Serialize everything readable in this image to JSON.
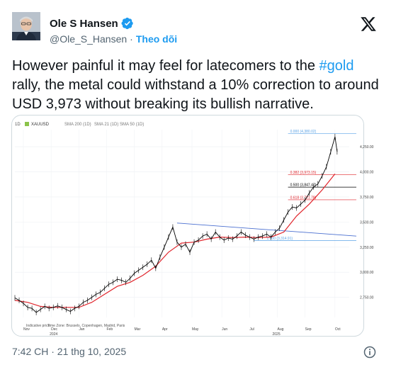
{
  "author": {
    "display_name": "Ole S Hansen",
    "handle": "@Ole_S_Hansen",
    "separator": "·",
    "follow_label": "Theo dõi",
    "avatar_icon": "person-avatar-icon",
    "verified_icon": "verified-badge-icon"
  },
  "tweet": {
    "text_before": "However painful it may feel for latecomers to the ",
    "hashtag": "#gold",
    "text_after": " rally, the metal could withstand a 10% correction to around USD 3,973 without breaking its bullish narrative.",
    "timestamp": "7:42 CH · 21 thg 10, 2025"
  },
  "colors": {
    "accent": "#1d9bf0",
    "price": "#000000",
    "sma21": "#e0242b",
    "trendline": "#4a6fd0",
    "fib_red": "#e0242b",
    "fib_black": "#000000",
    "fib_blue": "#5ba3e6"
  },
  "chart_data": {
    "type": "line",
    "toolbar": {
      "timeframe": "1D",
      "symbol": "XAUUSD",
      "sma200": "SMA 200 (1D)",
      "sma21": "SMA 21 (1D)",
      "sma50": "SMA 50 (1D)"
    },
    "footer": {
      "indicative": "Indicative price",
      "timezone": "Time Zone: Brussels, Copenhagen, Madrid, Paris"
    },
    "x_labels": [
      "Nov",
      "Dec",
      "Jan",
      "Feb",
      "Mar",
      "Apr",
      "May",
      "Jun",
      "Jul",
      "Aug",
      "Sep",
      "Oct"
    ],
    "years": [
      "2024",
      "2025"
    ],
    "ylim": [
      2550,
      4420
    ],
    "y_ticks": [
      {
        "v": 2750,
        "label": "2,750.00"
      },
      {
        "v": 3000,
        "label": "3,000.00"
      },
      {
        "v": 3250,
        "label": "3,250.00"
      },
      {
        "v": 3500,
        "label": "3,500.00"
      },
      {
        "v": 3750,
        "label": "3,750.00"
      },
      {
        "v": 4000,
        "label": "4,000.00"
      },
      {
        "v": 4250,
        "label": "4,250.00"
      }
    ],
    "fib_levels": [
      {
        "ratio": "0.000",
        "value": 4380.02,
        "label": "0.000 (4,380.02)",
        "color": "#5ba3e6"
      },
      {
        "ratio": "0.382",
        "value": 3973.15,
        "label": "0.382 (3,973.15)",
        "color": "#e0242b"
      },
      {
        "ratio": "0.500",
        "value": 3847.47,
        "label": "0.500 (3,847.47)",
        "color": "#000000"
      },
      {
        "ratio": "0.618",
        "value": 3721.78,
        "label": "0.618 (3,721.78)",
        "color": "#e0242b"
      },
      {
        "ratio": "1.000",
        "value": 3314.91,
        "label": "1.000 (3,314.91)",
        "color": "#5ba3e6"
      }
    ],
    "price_series": {
      "name": "XAUUSD",
      "points": [
        [
          0,
          2745
        ],
        [
          2,
          2720
        ],
        [
          4,
          2690
        ],
        [
          6,
          2650
        ],
        [
          8,
          2640
        ],
        [
          10,
          2600
        ],
        [
          12,
          2630
        ],
        [
          14,
          2660
        ],
        [
          16,
          2640
        ],
        [
          18,
          2650
        ],
        [
          20,
          2665
        ],
        [
          22,
          2650
        ],
        [
          24,
          2630
        ],
        [
          26,
          2610
        ],
        [
          28,
          2640
        ],
        [
          30,
          2660
        ],
        [
          32,
          2700
        ],
        [
          34,
          2720
        ],
        [
          36,
          2750
        ],
        [
          38,
          2780
        ],
        [
          40,
          2800
        ],
        [
          42,
          2840
        ],
        [
          44,
          2880
        ],
        [
          46,
          2900
        ],
        [
          48,
          2930
        ],
        [
          50,
          2920
        ],
        [
          52,
          2900
        ],
        [
          54,
          2940
        ],
        [
          56,
          2990
        ],
        [
          58,
          3020
        ],
        [
          60,
          3050
        ],
        [
          62,
          3080
        ],
        [
          64,
          3120
        ],
        [
          66,
          3040
        ],
        [
          68,
          3150
        ],
        [
          70,
          3250
        ],
        [
          72,
          3350
        ],
        [
          74,
          3450
        ],
        [
          76,
          3300
        ],
        [
          78,
          3250
        ],
        [
          80,
          3280
        ],
        [
          82,
          3200
        ],
        [
          84,
          3300
        ],
        [
          86,
          3320
        ],
        [
          88,
          3360
        ],
        [
          90,
          3380
        ],
        [
          92,
          3330
        ],
        [
          94,
          3400
        ],
        [
          96,
          3350
        ],
        [
          98,
          3320
        ],
        [
          100,
          3340
        ],
        [
          102,
          3330
        ],
        [
          104,
          3360
        ],
        [
          106,
          3400
        ],
        [
          108,
          3370
        ],
        [
          110,
          3350
        ],
        [
          112,
          3330
        ],
        [
          114,
          3350
        ],
        [
          116,
          3360
        ],
        [
          118,
          3380
        ],
        [
          120,
          3350
        ],
        [
          122,
          3400
        ],
        [
          124,
          3440
        ],
        [
          126,
          3520
        ],
        [
          128,
          3600
        ],
        [
          130,
          3650
        ],
        [
          132,
          3640
        ],
        [
          134,
          3680
        ],
        [
          136,
          3720
        ],
        [
          138,
          3790
        ],
        [
          140,
          3850
        ],
        [
          142,
          3880
        ],
        [
          144,
          3960
        ],
        [
          146,
          4050
        ],
        [
          148,
          4200
        ],
        [
          150,
          4350
        ],
        [
          151,
          4200
        ]
      ]
    },
    "sma21_series": {
      "name": "SMA 21 (1D)",
      "points": [
        [
          0,
          2720
        ],
        [
          6,
          2700
        ],
        [
          12,
          2660
        ],
        [
          18,
          2650
        ],
        [
          24,
          2650
        ],
        [
          30,
          2650
        ],
        [
          36,
          2700
        ],
        [
          42,
          2780
        ],
        [
          48,
          2860
        ],
        [
          54,
          2900
        ],
        [
          60,
          2970
        ],
        [
          66,
          3060
        ],
        [
          72,
          3200
        ],
        [
          78,
          3290
        ],
        [
          84,
          3300
        ],
        [
          90,
          3330
        ],
        [
          96,
          3350
        ],
        [
          102,
          3345
        ],
        [
          108,
          3350
        ],
        [
          114,
          3345
        ],
        [
          120,
          3350
        ],
        [
          126,
          3400
        ],
        [
          132,
          3560
        ],
        [
          138,
          3680
        ],
        [
          144,
          3820
        ],
        [
          150,
          3980
        ]
      ]
    },
    "trendline": {
      "start": [
        76,
        3490
      ],
      "end": [
        160,
        3360
      ]
    },
    "xlim": [
      0,
      160
    ],
    "month_positions": [
      0,
      13,
      26,
      39,
      52,
      65,
      79,
      93,
      106,
      119,
      132,
      146
    ]
  }
}
